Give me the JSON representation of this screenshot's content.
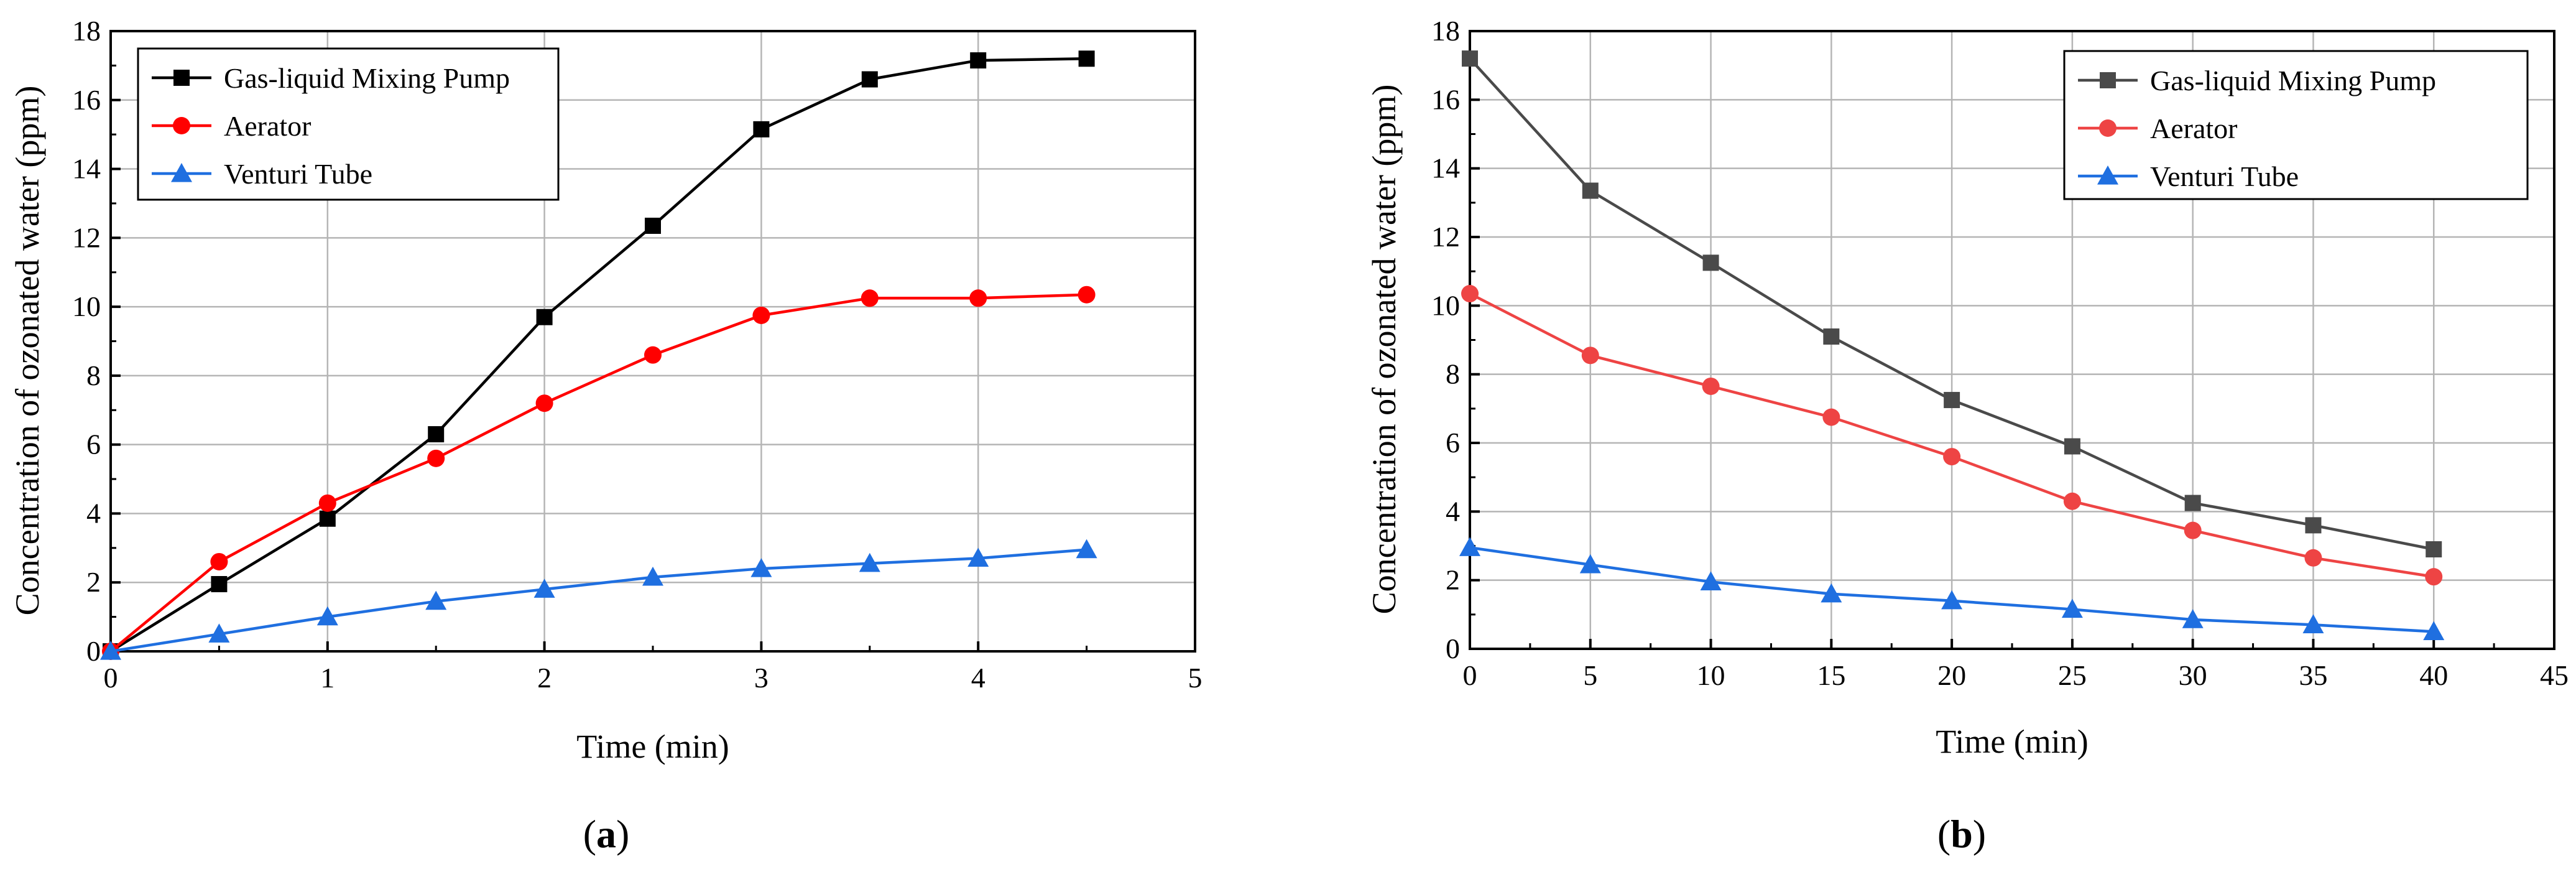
{
  "chart_data": [
    {
      "id": "a",
      "type": "line",
      "caption": "a",
      "xlabel": "Time (min)",
      "ylabel": "Concentration of ozonated water (ppm)",
      "xlim": [
        0,
        5
      ],
      "ylim": [
        0,
        18
      ],
      "xticks": [
        0,
        1,
        2,
        3,
        4,
        5
      ],
      "yticks": [
        0,
        2,
        4,
        6,
        8,
        10,
        12,
        14,
        16,
        18
      ],
      "grid": true,
      "legend_position": "top-left",
      "series": [
        {
          "name": "Gas-liquid Mixing Pump",
          "color": "#000000",
          "marker": "square",
          "x": [
            0,
            0.5,
            1,
            1.5,
            2,
            2.5,
            3,
            3.5,
            4,
            4.5
          ],
          "y": [
            0,
            1.95,
            3.85,
            6.3,
            9.7,
            12.35,
            15.15,
            16.6,
            17.15,
            17.2
          ]
        },
        {
          "name": "Aerator",
          "color": "#ff0000",
          "marker": "circle",
          "x": [
            0,
            0.5,
            1,
            1.5,
            2,
            2.5,
            3,
            3.5,
            4,
            4.5
          ],
          "y": [
            0,
            2.6,
            4.3,
            5.6,
            7.2,
            8.6,
            9.75,
            10.25,
            10.25,
            10.35
          ]
        },
        {
          "name": "Venturi Tube",
          "color": "#1f6fe0",
          "marker": "triangle",
          "x": [
            0,
            0.5,
            1,
            1.5,
            2,
            2.5,
            3,
            3.5,
            4,
            4.5
          ],
          "y": [
            0,
            0.5,
            1.0,
            1.45,
            1.8,
            2.15,
            2.4,
            2.55,
            2.7,
            2.95
          ]
        }
      ]
    },
    {
      "id": "b",
      "type": "line",
      "caption": "b",
      "xlabel": "Time (min)",
      "ylabel": "Concentration of ozonated water (ppm)",
      "xlim": [
        0,
        45
      ],
      "ylim": [
        0,
        18
      ],
      "xticks": [
        0,
        5,
        10,
        15,
        20,
        25,
        30,
        35,
        40,
        45
      ],
      "yticks": [
        0,
        2,
        4,
        6,
        8,
        10,
        12,
        14,
        16,
        18
      ],
      "grid": true,
      "legend_position": "top-right",
      "series": [
        {
          "name": "Gas-liquid Mixing Pump",
          "color": "#4a4a4a",
          "marker": "square",
          "x": [
            0,
            5,
            10,
            15,
            20,
            25,
            30,
            35,
            40
          ],
          "y": [
            17.2,
            13.35,
            11.25,
            9.1,
            7.25,
            5.9,
            4.25,
            3.6,
            2.9
          ]
        },
        {
          "name": "Aerator",
          "color": "#ee4444",
          "marker": "circle",
          "x": [
            0,
            5,
            10,
            15,
            20,
            25,
            30,
            35,
            40
          ],
          "y": [
            10.35,
            8.55,
            7.65,
            6.75,
            5.6,
            4.3,
            3.45,
            2.65,
            2.1
          ]
        },
        {
          "name": "Venturi Tube",
          "color": "#1f6fe0",
          "marker": "triangle",
          "x": [
            0,
            5,
            10,
            15,
            20,
            25,
            30,
            35,
            40
          ],
          "y": [
            2.95,
            2.45,
            1.95,
            1.6,
            1.4,
            1.15,
            0.85,
            0.7,
            0.5
          ]
        }
      ]
    }
  ]
}
